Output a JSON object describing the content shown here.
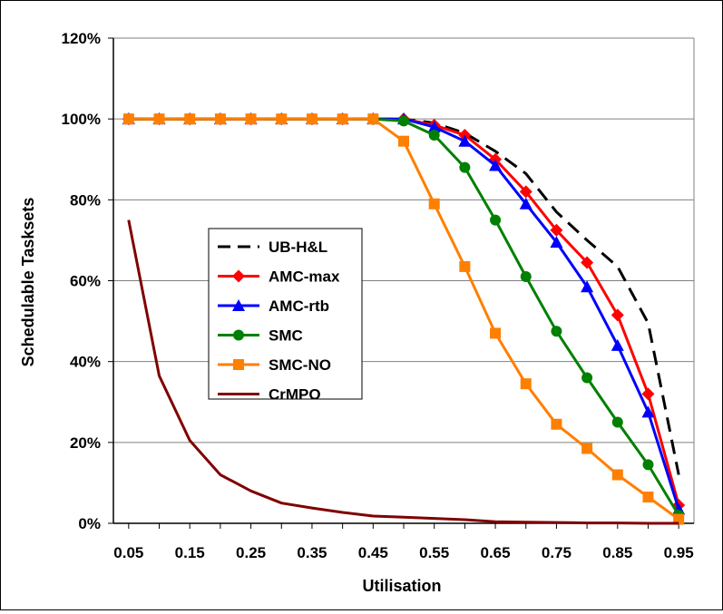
{
  "chart_data": {
    "type": "line",
    "title": "",
    "xlabel": "Utilisation",
    "ylabel": "Schedulable Tasksets",
    "ylim": [
      0,
      120
    ],
    "y_ticks": [
      "0%",
      "20%",
      "40%",
      "60%",
      "80%",
      "100%",
      "120%"
    ],
    "x_tick_labels": [
      "0.05",
      "0.15",
      "0.25",
      "0.35",
      "0.45",
      "0.55",
      "0.65",
      "0.75",
      "0.85",
      "0.95"
    ],
    "x": [
      0.05,
      0.1,
      0.15,
      0.2,
      0.25,
      0.3,
      0.35,
      0.4,
      0.45,
      0.5,
      0.55,
      0.6,
      0.65,
      0.7,
      0.75,
      0.8,
      0.85,
      0.9,
      0.95
    ],
    "grid": "horizontal",
    "legend_position": "center-left",
    "series": [
      {
        "name": "UB-H&L",
        "color": "#000000",
        "style": "dashed",
        "marker": "none",
        "values": [
          100,
          100,
          100,
          100,
          100,
          100,
          100,
          100,
          100,
          100,
          99,
          96.5,
          92,
          86.5,
          77,
          70,
          63.5,
          49.5,
          12
        ]
      },
      {
        "name": "AMC-max",
        "color": "#ff0000",
        "style": "solid",
        "marker": "diamond",
        "values": [
          100,
          100,
          100,
          100,
          100,
          100,
          100,
          100,
          100,
          100,
          98.5,
          96,
          90,
          82,
          72.5,
          64.5,
          51.5,
          32,
          4.5
        ]
      },
      {
        "name": "AMC-rtb",
        "color": "#0000ff",
        "style": "solid",
        "marker": "triangle",
        "values": [
          100,
          100,
          100,
          100,
          100,
          100,
          100,
          100,
          100,
          100,
          98,
          94.5,
          88.5,
          79,
          69.5,
          58.5,
          44,
          27.5,
          3.5
        ]
      },
      {
        "name": "SMC",
        "color": "#008000",
        "style": "solid",
        "marker": "circle",
        "values": [
          100,
          100,
          100,
          100,
          100,
          100,
          100,
          100,
          100,
          99.5,
          96,
          88,
          75,
          61,
          47.5,
          36,
          25,
          14.5,
          2
        ]
      },
      {
        "name": "SMC-NO",
        "color": "#ff7f00",
        "style": "solid",
        "marker": "square",
        "values": [
          100,
          100,
          100,
          100,
          100,
          100,
          100,
          100,
          100,
          94.5,
          79,
          63.5,
          47,
          34.5,
          24.5,
          18.5,
          12,
          6.5,
          1
        ]
      },
      {
        "name": "CrMPO",
        "color": "#800000",
        "style": "solid",
        "marker": "none",
        "values": [
          75,
          36.5,
          20.5,
          12,
          8,
          5,
          3.8,
          2.7,
          1.8,
          1.5,
          1.2,
          0.9,
          0.4,
          0.3,
          0.2,
          0.1,
          0.1,
          0,
          0
        ]
      }
    ]
  }
}
